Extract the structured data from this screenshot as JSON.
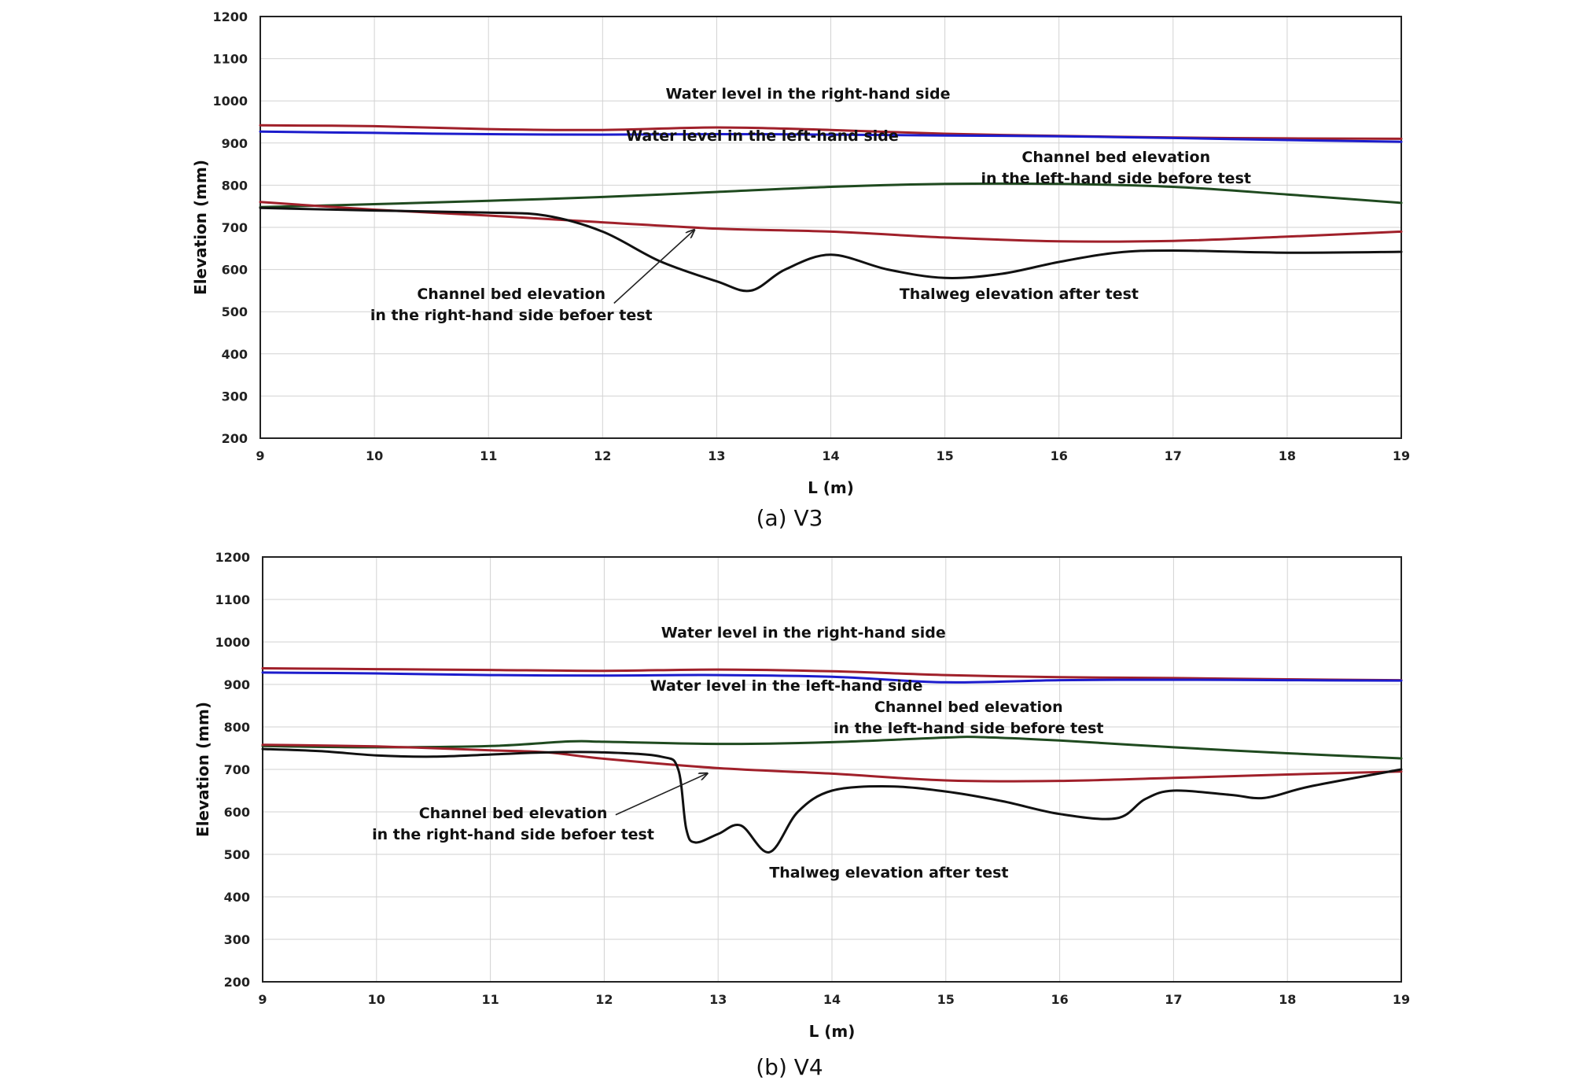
{
  "chart_data": [
    {
      "type": "line",
      "caption": "(a) V3",
      "xlabel": "L (m)",
      "ylabel": "Elevation (mm)",
      "xlim": [
        9,
        19
      ],
      "ylim": [
        200,
        1200
      ],
      "xticks": [
        "9",
        "10",
        "11",
        "12",
        "13",
        "14",
        "15",
        "16",
        "17",
        "18",
        "19"
      ],
      "yticks": [
        "200",
        "300",
        "400",
        "500",
        "600",
        "700",
        "800",
        "900",
        "1000",
        "1100",
        "1200"
      ],
      "grid": true,
      "legend": "none",
      "series": [
        {
          "key": "wl_right",
          "color": "#a0202a",
          "x": [
            9,
            10,
            11,
            12,
            13,
            14,
            15,
            16,
            17,
            18,
            19
          ],
          "y": [
            942,
            940,
            933,
            931,
            937,
            931,
            922,
            917,
            913,
            911,
            910
          ]
        },
        {
          "key": "wl_left",
          "color": "#1c1ccc",
          "x": [
            9,
            10,
            11,
            12,
            13,
            14,
            15,
            16,
            17,
            18,
            19
          ],
          "y": [
            927,
            924,
            921,
            920,
            921,
            920,
            918,
            916,
            912,
            907,
            903
          ]
        },
        {
          "key": "bed_left",
          "color": "#1f4a1f",
          "x": [
            9,
            10,
            11,
            12,
            13,
            14,
            15,
            16,
            17,
            18,
            19
          ],
          "y": [
            748,
            755,
            763,
            772,
            784,
            796,
            803,
            803,
            796,
            778,
            758
          ]
        },
        {
          "key": "bed_right",
          "color": "#a0202a",
          "x": [
            9,
            10,
            11,
            12,
            13,
            14,
            15,
            16,
            17,
            18,
            19
          ],
          "y": [
            760,
            742,
            728,
            712,
            697,
            690,
            676,
            667,
            668,
            678,
            690
          ]
        },
        {
          "key": "thalweg",
          "color": "#111111",
          "x": [
            9,
            10,
            11,
            11.5,
            12,
            12.5,
            13,
            13.3,
            13.6,
            14,
            14.5,
            15,
            15.5,
            16,
            16.5,
            17,
            18,
            19
          ],
          "y": [
            746,
            740,
            735,
            728,
            690,
            620,
            572,
            550,
            600,
            635,
            600,
            580,
            590,
            618,
            640,
            645,
            640,
            642
          ]
        }
      ],
      "annotations": [
        {
          "lines": [
            "Water level in the right-hand side"
          ],
          "x": 13.8,
          "y": 1005
        },
        {
          "lines": [
            "Water level in the left-hand side"
          ],
          "x": 13.4,
          "y": 905
        },
        {
          "lines": [
            "Channel bed elevation",
            "in the left-hand side before test"
          ],
          "x": 16.5,
          "y": 855
        },
        {
          "lines": [
            "Channel bed elevation",
            "in the right-hand side befoer test"
          ],
          "x": 11.2,
          "y": 530
        },
        {
          "lines": [
            "Thalweg elevation after test"
          ],
          "x": 15.65,
          "y": 530
        }
      ],
      "arrow": {
        "from": [
          12.1,
          520
        ],
        "to": [
          12.8,
          693
        ]
      }
    },
    {
      "type": "line",
      "caption": "(b) V4",
      "xlabel": "L (m)",
      "ylabel": "Elevation (mm)",
      "xlim": [
        9,
        19
      ],
      "ylim": [
        200,
        1200
      ],
      "xticks": [
        "9",
        "10",
        "11",
        "12",
        "13",
        "14",
        "15",
        "16",
        "17",
        "18",
        "19"
      ],
      "yticks": [
        "200",
        "300",
        "400",
        "500",
        "600",
        "700",
        "800",
        "900",
        "1000",
        "1100",
        "1200"
      ],
      "grid": true,
      "legend": "none",
      "series": [
        {
          "key": "wl_right",
          "color": "#a0202a",
          "x": [
            9,
            10,
            11,
            12,
            13,
            14,
            15,
            16,
            17,
            18,
            19
          ],
          "y": [
            938,
            936,
            934,
            932,
            935,
            931,
            922,
            917,
            915,
            912,
            910
          ]
        },
        {
          "key": "wl_left",
          "color": "#1c1ccc",
          "x": [
            9,
            10,
            11,
            12,
            13,
            14,
            15,
            16,
            17,
            18,
            19
          ],
          "y": [
            928,
            926,
            922,
            921,
            922,
            918,
            905,
            910,
            911,
            910,
            909
          ]
        },
        {
          "key": "bed_left",
          "color": "#1f4a1f",
          "x": [
            9,
            10,
            11,
            11.7,
            12,
            13,
            14,
            15,
            15.3,
            16,
            17,
            18,
            19
          ],
          "y": [
            755,
            752,
            755,
            766,
            765,
            760,
            764,
            775,
            776,
            768,
            752,
            738,
            726
          ]
        },
        {
          "key": "bed_right",
          "color": "#a0202a",
          "x": [
            9,
            10,
            11,
            11.5,
            12,
            13,
            14,
            15,
            16,
            17,
            18,
            19
          ],
          "y": [
            758,
            754,
            745,
            740,
            725,
            703,
            690,
            674,
            673,
            680,
            688,
            695
          ]
        },
        {
          "key": "thalweg",
          "color": "#111111",
          "x": [
            9,
            9.5,
            10,
            10.5,
            11,
            11.5,
            12,
            12.5,
            12.65,
            12.72,
            12.8,
            13,
            13.2,
            13.45,
            13.7,
            14,
            14.5,
            15,
            15.5,
            16,
            16.5,
            16.75,
            17,
            17.5,
            17.8,
            18.2,
            19
          ],
          "y": [
            748,
            743,
            733,
            730,
            735,
            740,
            740,
            730,
            700,
            560,
            528,
            548,
            568,
            505,
            600,
            650,
            660,
            648,
            625,
            595,
            585,
            630,
            650,
            640,
            633,
            660,
            700
          ]
        }
      ],
      "annotations": [
        {
          "lines": [
            "Water level in the right-hand side"
          ],
          "x": 13.75,
          "y": 1010
        },
        {
          "lines": [
            "Water level in the left-hand side"
          ],
          "x": 13.6,
          "y": 885
        },
        {
          "lines": [
            "Channel bed elevation",
            "in the left-hand side before test"
          ],
          "x": 15.2,
          "y": 835
        },
        {
          "lines": [
            "Channel bed elevation",
            "in the right-hand side befoer test"
          ],
          "x": 11.2,
          "y": 585
        },
        {
          "lines": [
            "Thalweg elevation after test"
          ],
          "x": 14.5,
          "y": 445
        }
      ],
      "arrow": {
        "from": [
          12.1,
          593
        ],
        "to": [
          12.9,
          690
        ]
      }
    }
  ]
}
